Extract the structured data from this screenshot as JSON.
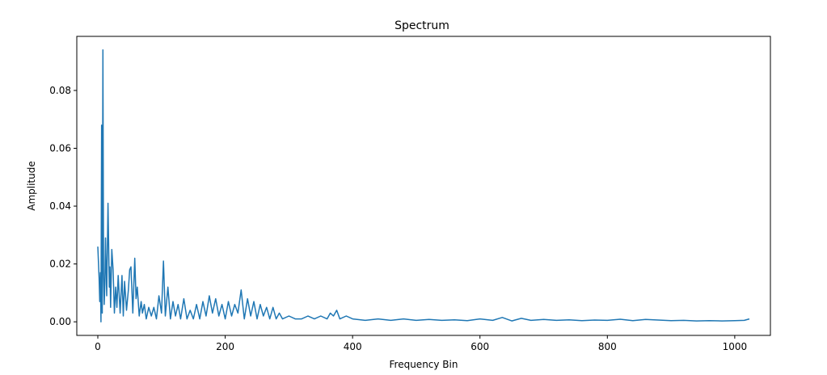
{
  "chart_data": {
    "type": "line",
    "title": "Spectrum",
    "xlabel": "Frequency Bin",
    "ylabel": "Amplitude",
    "xlim": [
      -33,
      1056
    ],
    "ylim": [
      -0.0047,
      0.0987
    ],
    "xticks": [
      0,
      200,
      400,
      600,
      800,
      1000
    ],
    "yticks": [
      0.0,
      0.02,
      0.04,
      0.06,
      0.08
    ],
    "xtick_labels": [
      "0",
      "200",
      "400",
      "600",
      "800",
      "1000"
    ],
    "ytick_labels": [
      "0.00",
      "0.02",
      "0.04",
      "0.06",
      "0.08"
    ],
    "grid": false,
    "color": "#1f77b4",
    "series": [
      {
        "x": [
          0,
          2,
          3,
          4,
          5,
          6,
          7,
          8,
          9,
          10,
          11,
          12,
          14,
          16,
          18,
          19,
          20,
          22,
          24,
          26,
          28,
          30,
          32,
          35,
          38,
          40,
          42,
          45,
          48,
          50,
          52,
          55,
          58,
          60,
          62,
          65,
          68,
          70,
          73,
          76,
          80,
          84,
          88,
          92,
          96,
          100,
          103,
          106,
          110,
          114,
          118,
          122,
          126,
          130,
          135,
          140,
          145,
          150,
          155,
          160,
          165,
          170,
          175,
          180,
          185,
          190,
          195,
          200,
          205,
          210,
          215,
          220,
          225,
          230,
          235,
          240,
          245,
          250,
          255,
          260,
          265,
          270,
          275,
          280,
          285,
          290,
          300,
          310,
          320,
          330,
          340,
          350,
          360,
          365,
          370,
          375,
          380,
          390,
          400,
          420,
          440,
          460,
          480,
          500,
          520,
          540,
          560,
          580,
          600,
          620,
          635,
          650,
          665,
          680,
          700,
          720,
          740,
          760,
          780,
          800,
          820,
          840,
          860,
          880,
          900,
          920,
          940,
          960,
          980,
          1000,
          1015,
          1023
        ],
        "y": [
          0.026,
          0.015,
          0.007,
          0.017,
          0.0,
          0.068,
          0.003,
          0.094,
          0.017,
          0.006,
          0.013,
          0.029,
          0.009,
          0.041,
          0.012,
          0.019,
          0.005,
          0.025,
          0.018,
          0.003,
          0.012,
          0.005,
          0.016,
          0.003,
          0.016,
          0.002,
          0.014,
          0.004,
          0.011,
          0.018,
          0.019,
          0.003,
          0.022,
          0.008,
          0.012,
          0.002,
          0.007,
          0.003,
          0.006,
          0.001,
          0.005,
          0.002,
          0.005,
          0.001,
          0.009,
          0.003,
          0.021,
          0.002,
          0.012,
          0.001,
          0.007,
          0.002,
          0.006,
          0.001,
          0.008,
          0.001,
          0.004,
          0.001,
          0.006,
          0.001,
          0.007,
          0.002,
          0.009,
          0.003,
          0.008,
          0.002,
          0.006,
          0.001,
          0.007,
          0.002,
          0.006,
          0.003,
          0.011,
          0.001,
          0.008,
          0.002,
          0.007,
          0.001,
          0.006,
          0.002,
          0.005,
          0.001,
          0.005,
          0.001,
          0.003,
          0.001,
          0.002,
          0.001,
          0.001,
          0.002,
          0.001,
          0.002,
          0.001,
          0.003,
          0.002,
          0.004,
          0.001,
          0.002,
          0.001,
          0.0005,
          0.001,
          0.0005,
          0.001,
          0.0005,
          0.0008,
          0.0005,
          0.0007,
          0.0004,
          0.001,
          0.0005,
          0.0015,
          0.0003,
          0.0012,
          0.0005,
          0.0008,
          0.0005,
          0.0007,
          0.0004,
          0.0006,
          0.0005,
          0.0009,
          0.0004,
          0.0008,
          0.0006,
          0.0004,
          0.0005,
          0.0003,
          0.0004,
          0.0003,
          0.0004,
          0.0005,
          0.001
        ]
      }
    ]
  }
}
